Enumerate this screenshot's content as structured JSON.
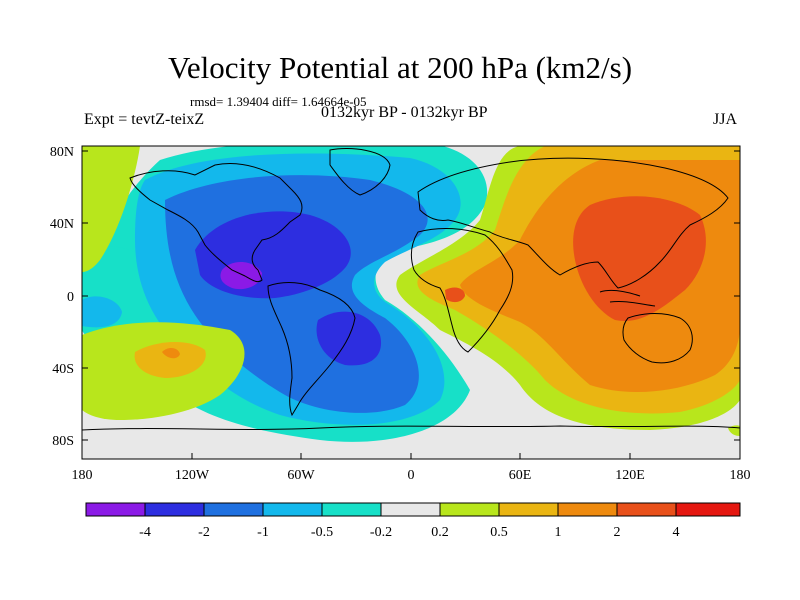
{
  "title": "Velocity Potential at 200 hPa (km2/s)",
  "stats": "rmsd= 1.39404 diff= 1.64664e-05",
  "experiment": "Expt = tevtZ-teixZ",
  "period": "0132kyr BP - 0132kyr BP",
  "season": "JJA",
  "lat_ticks": [
    "80N",
    "40N",
    "0",
    "40S",
    "80S"
  ],
  "lon_ticks": [
    "180",
    "120W",
    "60W",
    "0",
    "60E",
    "120E",
    "180"
  ],
  "colorbar": {
    "labels": [
      "-4",
      "-2",
      "-1",
      "-0.5",
      "-0.2",
      "0.2",
      "0.5",
      "1",
      "2",
      "4"
    ],
    "colors": [
      "#8b1ae6",
      "#2d2ee0",
      "#1f70e0",
      "#13b8ec",
      "#17e0c8",
      "#e8e8e8",
      "#b8e61c",
      "#eab512",
      "#ee8a0e",
      "#e8501a",
      "#e51710"
    ]
  }
}
